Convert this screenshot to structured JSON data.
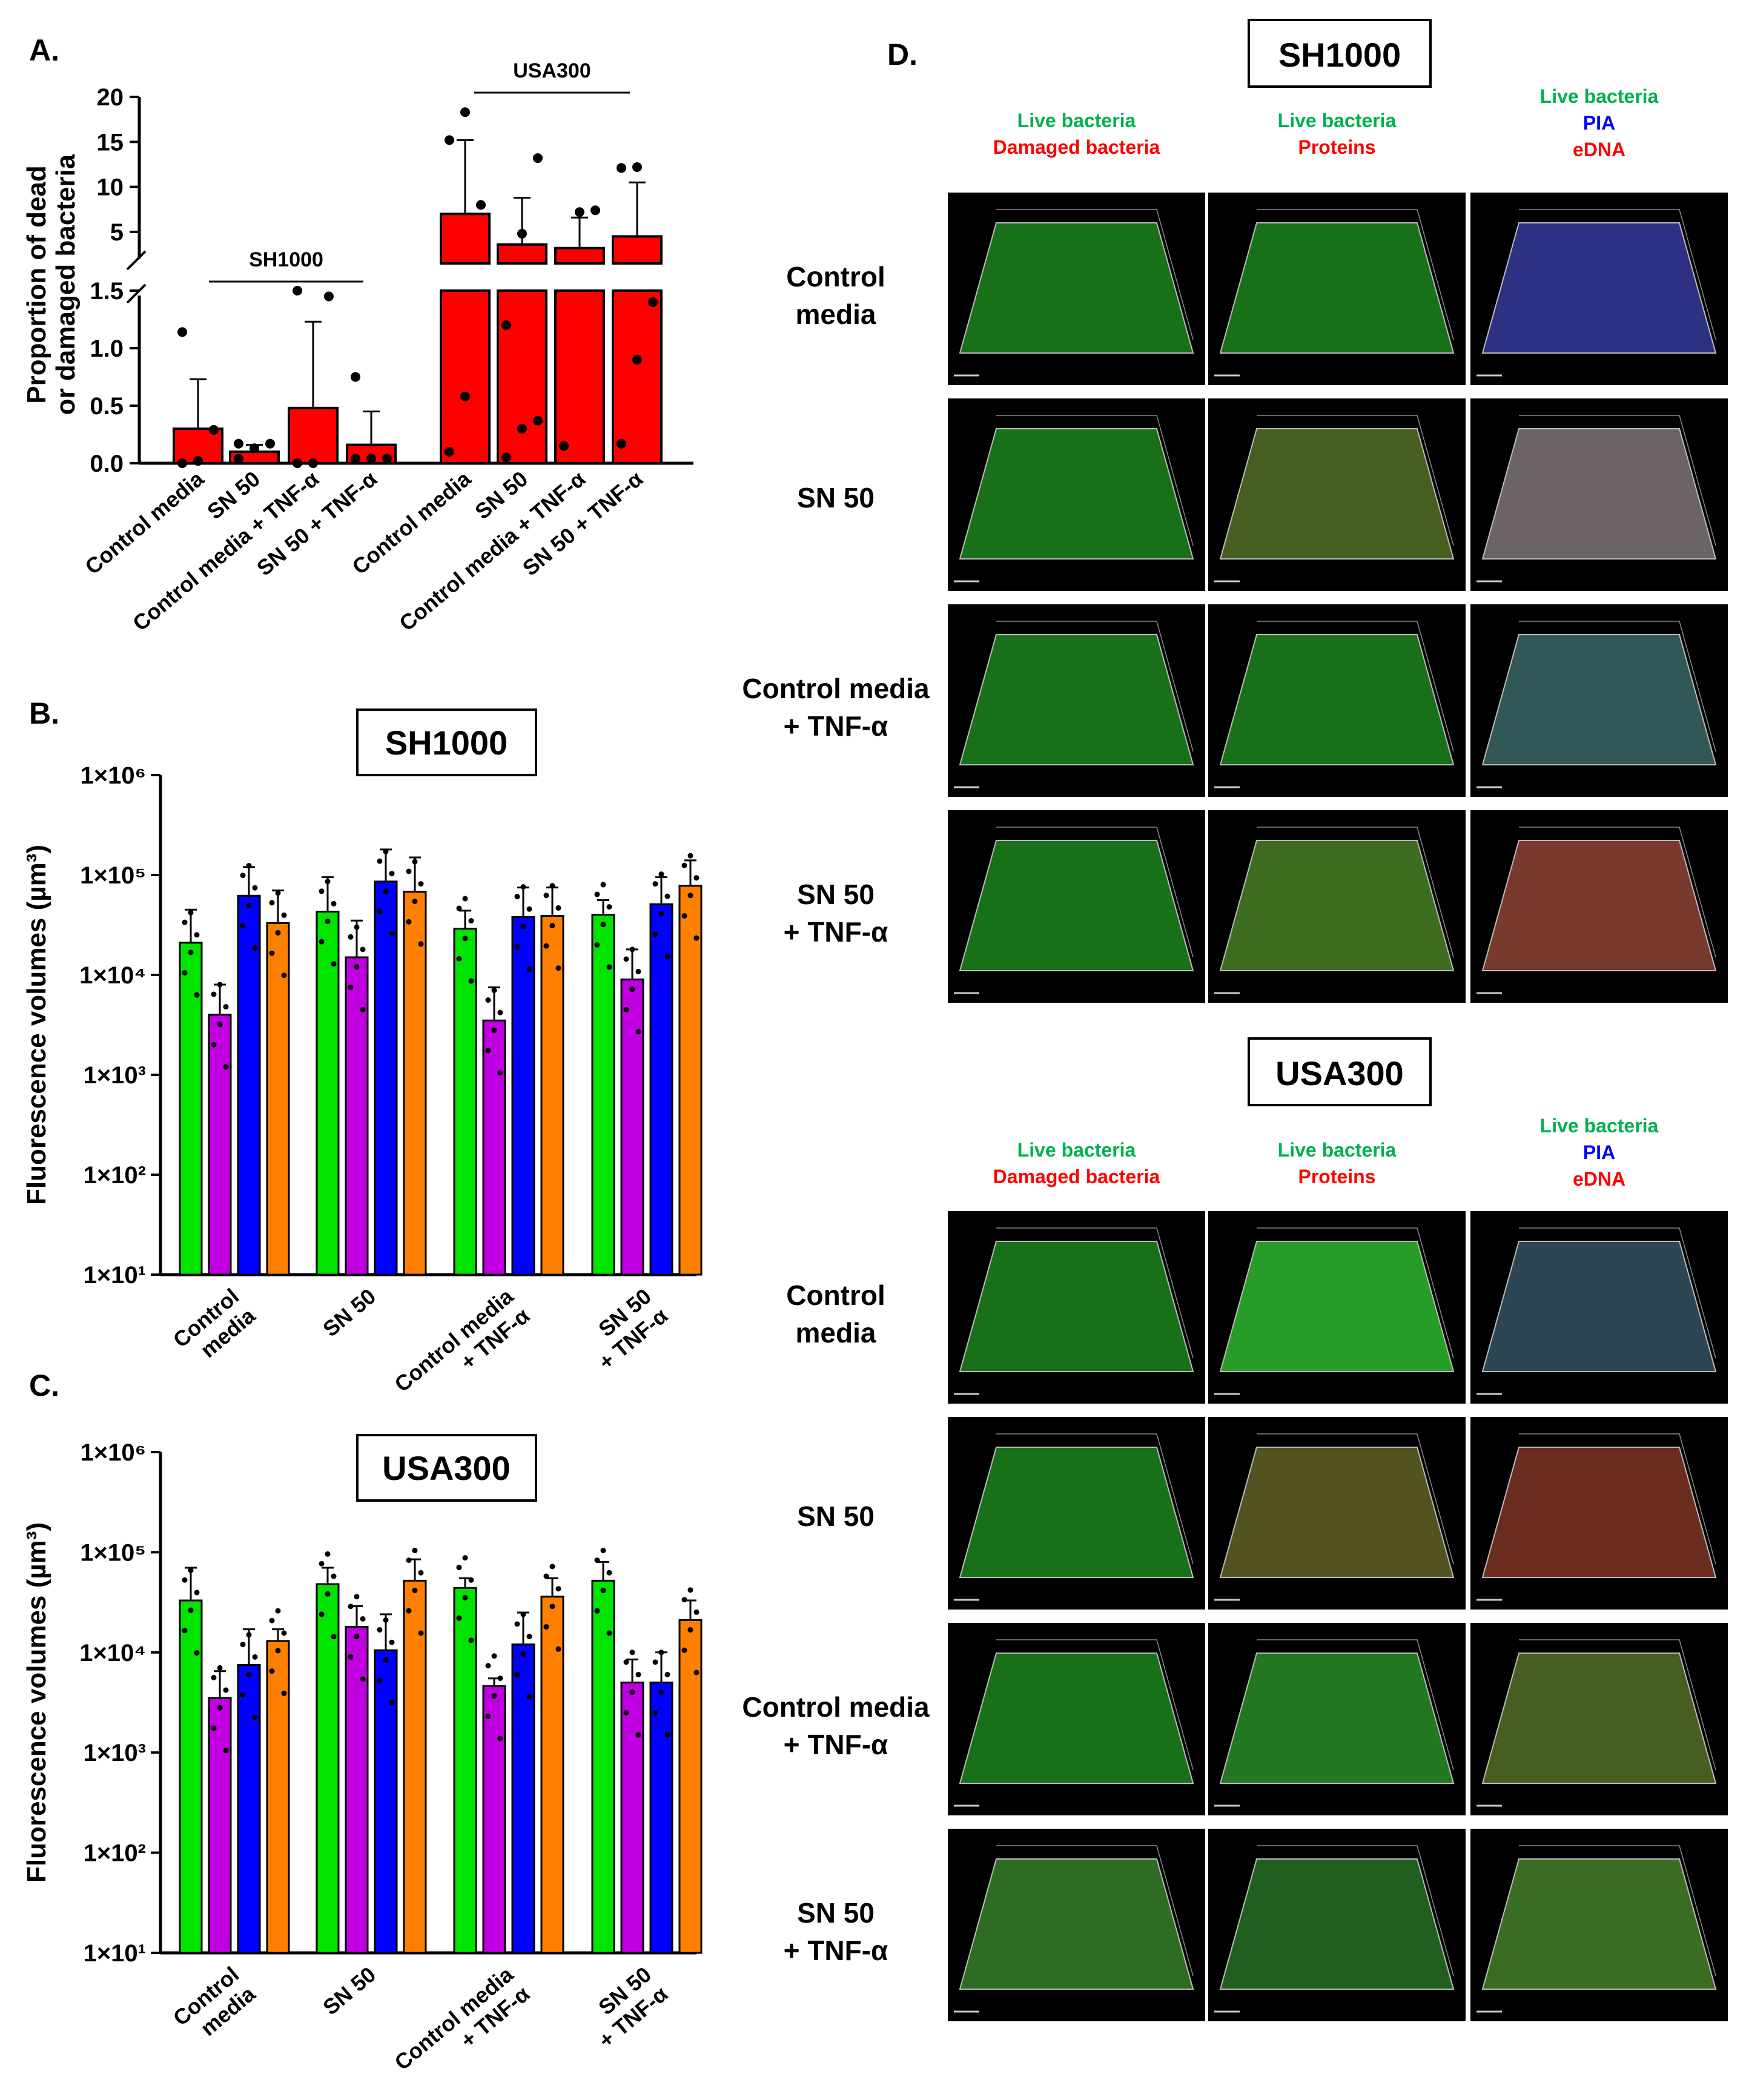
{
  "panels": {
    "a": "A.",
    "b": "B.",
    "c": "C.",
    "d": "D."
  },
  "chart_data": [
    {
      "type": "bar",
      "id": "A",
      "ylabel": "Proportion of dead\nor damaged bacteria",
      "y_axis_break": true,
      "lower_ylim": [
        0,
        1.5
      ],
      "upper_ylim": [
        1.5,
        20
      ],
      "lower_ticks": [
        "0.0",
        "0.5",
        "1.0",
        "1.5"
      ],
      "upper_ticks": [
        "5",
        "10",
        "15",
        "20"
      ],
      "categories": [
        "Control media",
        "SN 50",
        "Control media + TNF-α",
        "SN 50 + TNF-α",
        "Control media",
        "SN 50",
        "Control media + TNF-α",
        "SN 50 + TNF-α"
      ],
      "groups": [
        {
          "label": "SH1000",
          "indices": [
            0,
            1,
            2,
            3
          ]
        },
        {
          "label": "USA300",
          "indices": [
            4,
            5,
            6,
            7
          ]
        }
      ],
      "values": [
        0.3,
        0.1,
        0.48,
        0.16,
        7.0,
        3.6,
        3.2,
        4.5
      ],
      "errors": [
        0.43,
        0.06,
        0.75,
        0.29,
        8.2,
        5.2,
        3.4,
        6.0
      ],
      "points": [
        [
          0.0,
          0.02,
          0.29,
          1.14
        ],
        [
          0.04,
          0.13,
          0.17,
          0.17
        ],
        [
          0.0,
          0.0,
          1.45,
          1.5
        ],
        [
          0.04,
          0.04,
          0.04,
          0.75
        ]
      ],
      "points_usa300": [
        [
          0.1,
          0.58,
          8.0,
          15.2,
          18.3
        ],
        [
          0.05,
          0.3,
          0.37,
          1.2,
          4.8,
          13.2
        ],
        [
          0.15,
          7.2,
          7.4
        ],
        [
          0.17,
          0.9,
          1.4,
          12.1,
          12.2
        ]
      ],
      "bar_color": "#ff0000",
      "point_color": "#000000"
    },
    {
      "type": "bar",
      "id": "B",
      "title": "SH1000",
      "ylabel": "Fluorescence volumes (µm³)",
      "yscale": "log",
      "ylim": [
        10,
        1000000
      ],
      "yticks": [
        "1×10¹",
        "1×10²",
        "1×10³",
        "1×10⁴",
        "1×10⁵",
        "1×10⁶"
      ],
      "categories": [
        "Control\nmedia",
        "SN 50",
        "Control media\n+ TNF-α",
        "SN 50\n+ TNF-α"
      ],
      "series_colors": [
        "#00e400",
        "#c000e0",
        "#0000ff",
        "#ff7f00"
      ],
      "series": [
        {
          "values": [
            21000,
            43000,
            29000,
            40000
          ],
          "errors": [
            45000,
            95000,
            44000,
            56000
          ]
        },
        {
          "values": [
            4000,
            15000,
            3500,
            9000
          ],
          "errors": [
            8000,
            35000,
            7500,
            18000
          ]
        },
        {
          "values": [
            62000,
            86000,
            38000,
            51000
          ],
          "errors": [
            120000,
            180000,
            75000,
            95000
          ]
        },
        {
          "values": [
            33000,
            68000,
            39000,
            78000
          ],
          "errors": [
            70000,
            150000,
            75000,
            140000
          ]
        }
      ]
    },
    {
      "type": "bar",
      "id": "C",
      "title": "USA300",
      "ylabel": "Fluorescence volumes (µm³)",
      "yscale": "log",
      "ylim": [
        10,
        1000000
      ],
      "yticks": [
        "1×10¹",
        "1×10²",
        "1×10³",
        "1×10⁴",
        "1×10⁵",
        "1×10⁶"
      ],
      "categories": [
        "Control\nmedia",
        "SN 50",
        "Control media\n+ TNF-α",
        "SN 50\n+ TNF-α"
      ],
      "series_colors": [
        "#00e400",
        "#c000e0",
        "#0000ff",
        "#ff7f00"
      ],
      "series": [
        {
          "values": [
            33000,
            48000,
            44000,
            52000
          ],
          "errors": [
            70000,
            70000,
            55000,
            80000
          ]
        },
        {
          "values": [
            3500,
            18000,
            4600,
            5000
          ],
          "errors": [
            6500,
            29000,
            5500,
            8500
          ]
        },
        {
          "values": [
            7500,
            10500,
            12000,
            5000
          ],
          "errors": [
            17000,
            24000,
            25000,
            10000
          ]
        },
        {
          "values": [
            13000,
            52000,
            36000,
            21000
          ],
          "errors": [
            17000,
            85000,
            55000,
            33000
          ]
        }
      ]
    }
  ],
  "micrographs": {
    "sections": [
      {
        "title": "SH1000",
        "columns": [
          [
            {
              "text": "Live bacteria",
              "color": "#00b050"
            },
            {
              "text": "Damaged bacteria",
              "color": "#ff0000"
            }
          ],
          [
            {
              "text": "Live bacteria",
              "color": "#00b050"
            },
            {
              "text": "Proteins",
              "color": "#ff0000"
            }
          ],
          [
            {
              "text": "Live bacteria",
              "color": "#00b050"
            },
            {
              "text": "PIA",
              "color": "#0000ff"
            },
            {
              "text": "eDNA",
              "color": "#ff0000"
            }
          ]
        ],
        "rows": [
          [
            "Control",
            "media"
          ],
          [
            "SN 50"
          ],
          [
            "Control media",
            "+ TNF-α"
          ],
          [
            "SN 50",
            "+ TNF-α"
          ]
        ],
        "tiles": [
          [
            "#1f8f1f",
            "#1f8f1f",
            "#3a3fa8"
          ],
          [
            "#1f8f1f",
            "#5a7a2a",
            "#8a7f82"
          ],
          [
            "#1f8f1f",
            "#1f8f1f",
            "#3f6f70"
          ],
          [
            "#1f8f1f",
            "#4f8a2a",
            "#9a4a3a"
          ]
        ]
      },
      {
        "title": "USA300",
        "columns": [
          [
            {
              "text": "Live bacteria",
              "color": "#00b050"
            },
            {
              "text": "Damaged bacteria",
              "color": "#ff0000"
            }
          ],
          [
            {
              "text": "Live bacteria",
              "color": "#00b050"
            },
            {
              "text": "Proteins",
              "color": "#ff0000"
            }
          ],
          [
            {
              "text": "Live bacteria",
              "color": "#00b050"
            },
            {
              "text": "PIA",
              "color": "#0000ff"
            },
            {
              "text": "eDNA",
              "color": "#ff0000"
            }
          ]
        ],
        "rows": [
          [
            "Control",
            "media"
          ],
          [
            "SN 50"
          ],
          [
            "Control media",
            "+ TNF-α"
          ],
          [
            "SN 50",
            "+ TNF-α"
          ]
        ],
        "tiles": [
          [
            "#1f8f1f",
            "#32c832",
            "#3a5a6a"
          ],
          [
            "#1f8f1f",
            "#6a6a2a",
            "#8a3a2a"
          ],
          [
            "#1f8f1f",
            "#2a9a2a",
            "#5a7a2a"
          ],
          [
            "#3a8a2a",
            "#2a7a2a",
            "#4a8a2a"
          ]
        ]
      }
    ]
  }
}
